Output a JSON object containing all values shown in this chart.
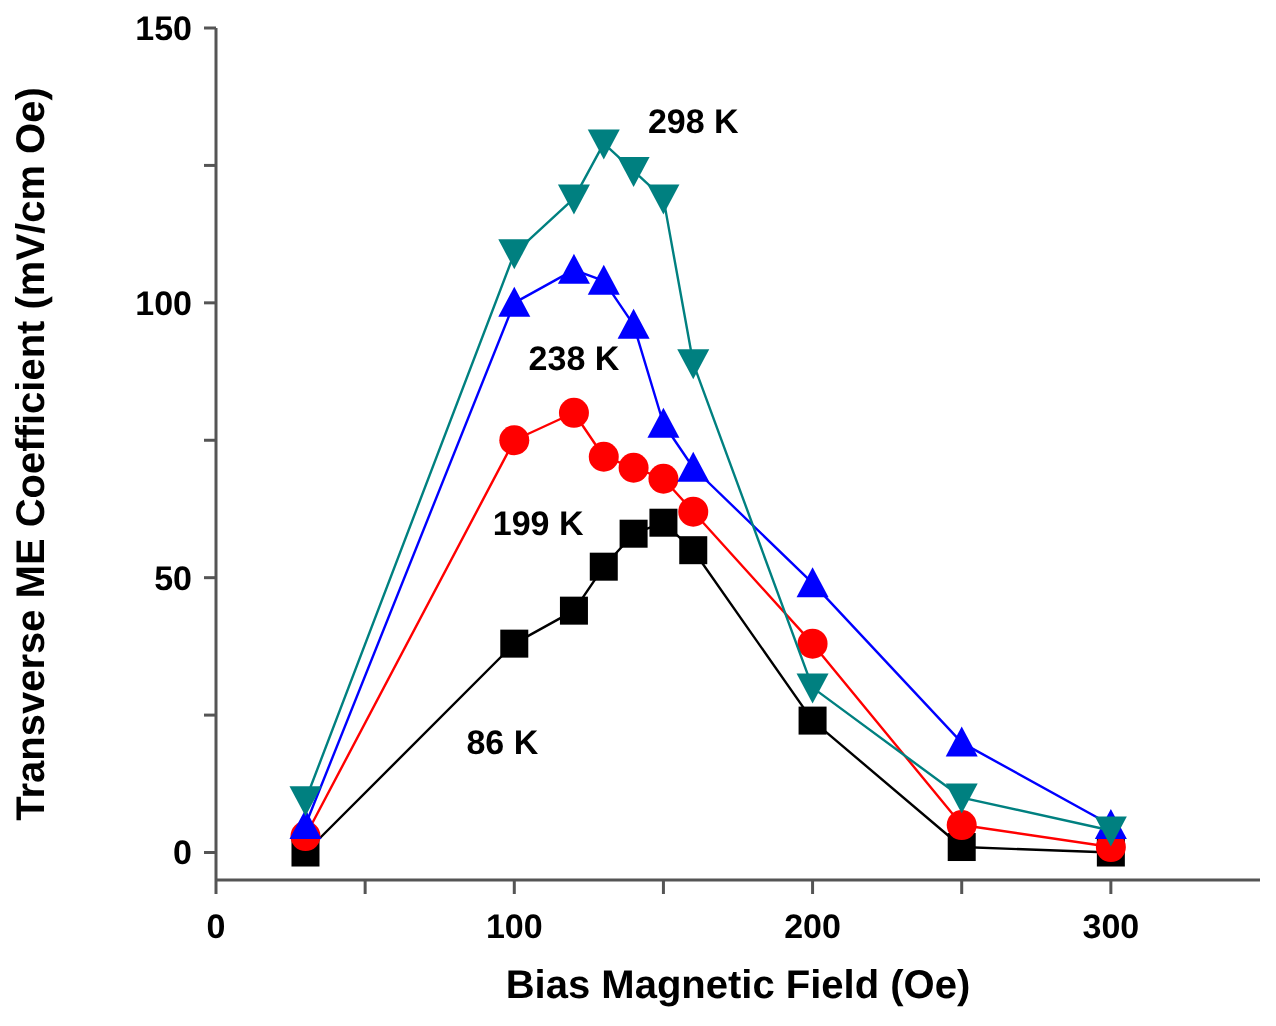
{
  "chart_data": {
    "type": "line",
    "xlabel": "Bias Magnetic Field (Oe)",
    "ylabel": "Transverse ME Coefficient (mV/cm Oe)",
    "x": [
      30,
      100,
      120,
      130,
      140,
      150,
      160,
      200,
      250,
      300
    ],
    "xlim": [
      0,
      350
    ],
    "xticks": [
      0,
      {
        "value": 50,
        "label": null
      },
      100,
      {
        "value": 150,
        "label": null
      },
      200,
      {
        "value": 250,
        "label": null
      },
      300
    ],
    "ylim": [
      -5,
      150
    ],
    "yticks": [
      0,
      {
        "value": 25,
        "label": null
      },
      50,
      {
        "value": 75,
        "label": null
      },
      100,
      {
        "value": 125,
        "label": null
      },
      150
    ],
    "grid": false,
    "line_style": "solid",
    "series": [
      {
        "name": "86 K",
        "color": "#000000",
        "marker": "square",
        "values": [
          0,
          38,
          44,
          52,
          58,
          60,
          55,
          24,
          1,
          0
        ]
      },
      {
        "name": "199 K",
        "color": "#ff0000",
        "marker": "circle",
        "values": [
          3,
          75,
          80,
          72,
          70,
          68,
          62,
          38,
          5,
          1
        ]
      },
      {
        "name": "238 K",
        "color": "#0000ff",
        "marker": "triangle",
        "values": [
          5,
          100,
          106,
          104,
          96,
          78,
          70,
          49,
          20,
          5
        ]
      },
      {
        "name": "298 K",
        "color": "#008080",
        "marker": "triangle-down",
        "values": [
          9.5,
          109,
          119,
          129,
          124,
          119,
          89,
          30,
          10,
          4
        ]
      }
    ]
  }
}
